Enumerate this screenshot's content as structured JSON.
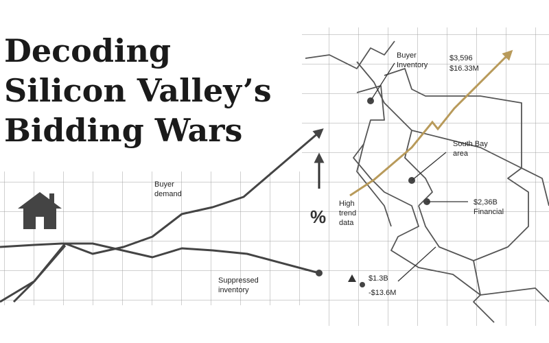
{
  "title": {
    "lines": [
      "Decoding",
      "Silicon Valley’s",
      "Bidding Wars"
    ]
  },
  "labels": {
    "buyer_demand": [
      "Buyer",
      "demand"
    ],
    "suppressed_inventory": [
      "Suppressed",
      "inventory"
    ],
    "small_stats": [
      "$1.3B",
      "-$13.6M"
    ],
    "percent": "%",
    "high_trend": [
      "High",
      "trend",
      "data"
    ],
    "buyer_inventory": [
      "Buyer",
      "Inventory"
    ],
    "top_stats": [
      "$3,596",
      "$16.33M"
    ],
    "south_bay": [
      "South Bay",
      "area"
    ],
    "financial": [
      "$2,36B",
      "Financial"
    ]
  }
}
